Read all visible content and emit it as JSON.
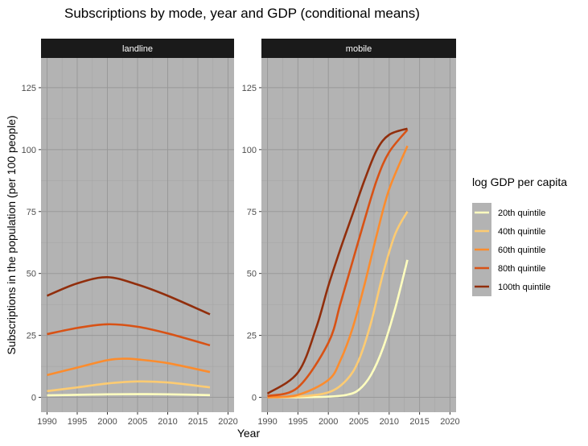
{
  "chart_data": {
    "type": "line",
    "title": "Subscriptions by mode, year and GDP (conditional means)",
    "xlabel": "Year",
    "ylabel": "Subscriptions in the population (per 100 people)",
    "xlim": [
      1989,
      2021
    ],
    "ylim": [
      -6,
      137
    ],
    "x_ticks": [
      1990,
      1995,
      2000,
      2005,
      2010,
      2015,
      2020
    ],
    "y_ticks": [
      0,
      25,
      50,
      75,
      100,
      125
    ],
    "grid": true,
    "legend": {
      "title": "log GDP per capita",
      "position": "right",
      "entries": [
        "20th quintile",
        "40th quintile",
        "60th quintile",
        "80th quintile",
        "100th quintile"
      ]
    },
    "colors": [
      "#FFFFBF",
      "#FDCB72",
      "#FC8C2D",
      "#D85215",
      "#912E0C"
    ],
    "panel_background": "#B3B3B3",
    "strip_background": "#1A1A1A",
    "panels": [
      {
        "label": "landline",
        "series": [
          {
            "name": "20th quintile",
            "x": [
              1990,
              1995,
              2000,
              2005,
              2010,
              2017
            ],
            "y": [
              0.8,
              1.0,
              1.2,
              1.3,
              1.2,
              0.9
            ]
          },
          {
            "name": "40th quintile",
            "x": [
              1990,
              1995,
              2000,
              2005,
              2010,
              2017
            ],
            "y": [
              2.5,
              4.0,
              5.6,
              6.4,
              6.0,
              4.0
            ]
          },
          {
            "name": "60th quintile",
            "x": [
              1990,
              1995,
              2000,
              2003,
              2005,
              2010,
              2017
            ],
            "y": [
              9.0,
              12.0,
              15.0,
              15.6,
              15.3,
              13.8,
              10.2
            ]
          },
          {
            "name": "80th quintile",
            "x": [
              1990,
              1995,
              2000,
              2005,
              2010,
              2017
            ],
            "y": [
              25.5,
              28.0,
              29.5,
              28.5,
              25.8,
              21.0
            ]
          },
          {
            "name": "100th quintile",
            "x": [
              1990,
              1995,
              2000,
              2005,
              2010,
              2017
            ],
            "y": [
              41.0,
              46.0,
              48.5,
              45.5,
              41.0,
              33.5
            ]
          }
        ]
      },
      {
        "label": "mobile",
        "series": [
          {
            "name": "20th quintile",
            "x": [
              1990,
              1995,
              2000,
              2003,
              2005,
              2007,
              2009,
              2011,
              2013
            ],
            "y": [
              0,
              0,
              0.3,
              1.0,
              3.0,
              9.0,
              20.0,
              36.0,
              55.5
            ]
          },
          {
            "name": "40th quintile",
            "x": [
              1990,
              1995,
              2000,
              2003,
              2005,
              2007,
              2009,
              2011,
              2013
            ],
            "y": [
              0,
              0.3,
              2.0,
              7.0,
              15.0,
              30.0,
              50.0,
              66.0,
              75.0
            ]
          },
          {
            "name": "60th quintile",
            "x": [
              1990,
              1995,
              2000,
              2002,
              2004,
              2006,
              2008,
              2010,
              2013
            ],
            "y": [
              0,
              1.0,
              7.0,
              15.0,
              28.0,
              46.0,
              66.0,
              84.0,
              101.5
            ]
          },
          {
            "name": "80th quintile",
            "x": [
              1990,
              1995,
              2000,
              2002,
              2004,
              2006,
              2008,
              2010,
              2013
            ],
            "y": [
              0.5,
              4.0,
              22.0,
              38.0,
              55.0,
              72.0,
              88.0,
              99.0,
              108.0
            ]
          },
          {
            "name": "100th quintile",
            "x": [
              1990,
              1995,
              1998,
              2000,
              2002,
              2004,
              2006,
              2008,
              2010,
              2013
            ],
            "y": [
              1.5,
              10.0,
              28.0,
              45.0,
              60.0,
              74.0,
              88.0,
              100.0,
              106.0,
              108.5
            ]
          }
        ]
      }
    ]
  }
}
